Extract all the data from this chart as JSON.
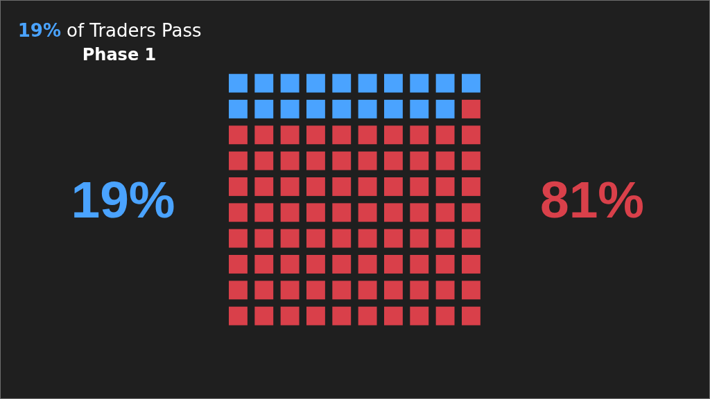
{
  "chart_data": {
    "type": "other",
    "title": "19% of Traders Pass",
    "subtitle": "Phase 1",
    "categories": [
      null,
      null
    ],
    "values": [
      19,
      81
    ],
    "colors": [
      "#4aa3ff",
      "#d9404a"
    ],
    "value_labels": [
      "19%",
      "81%"
    ]
  }
}
